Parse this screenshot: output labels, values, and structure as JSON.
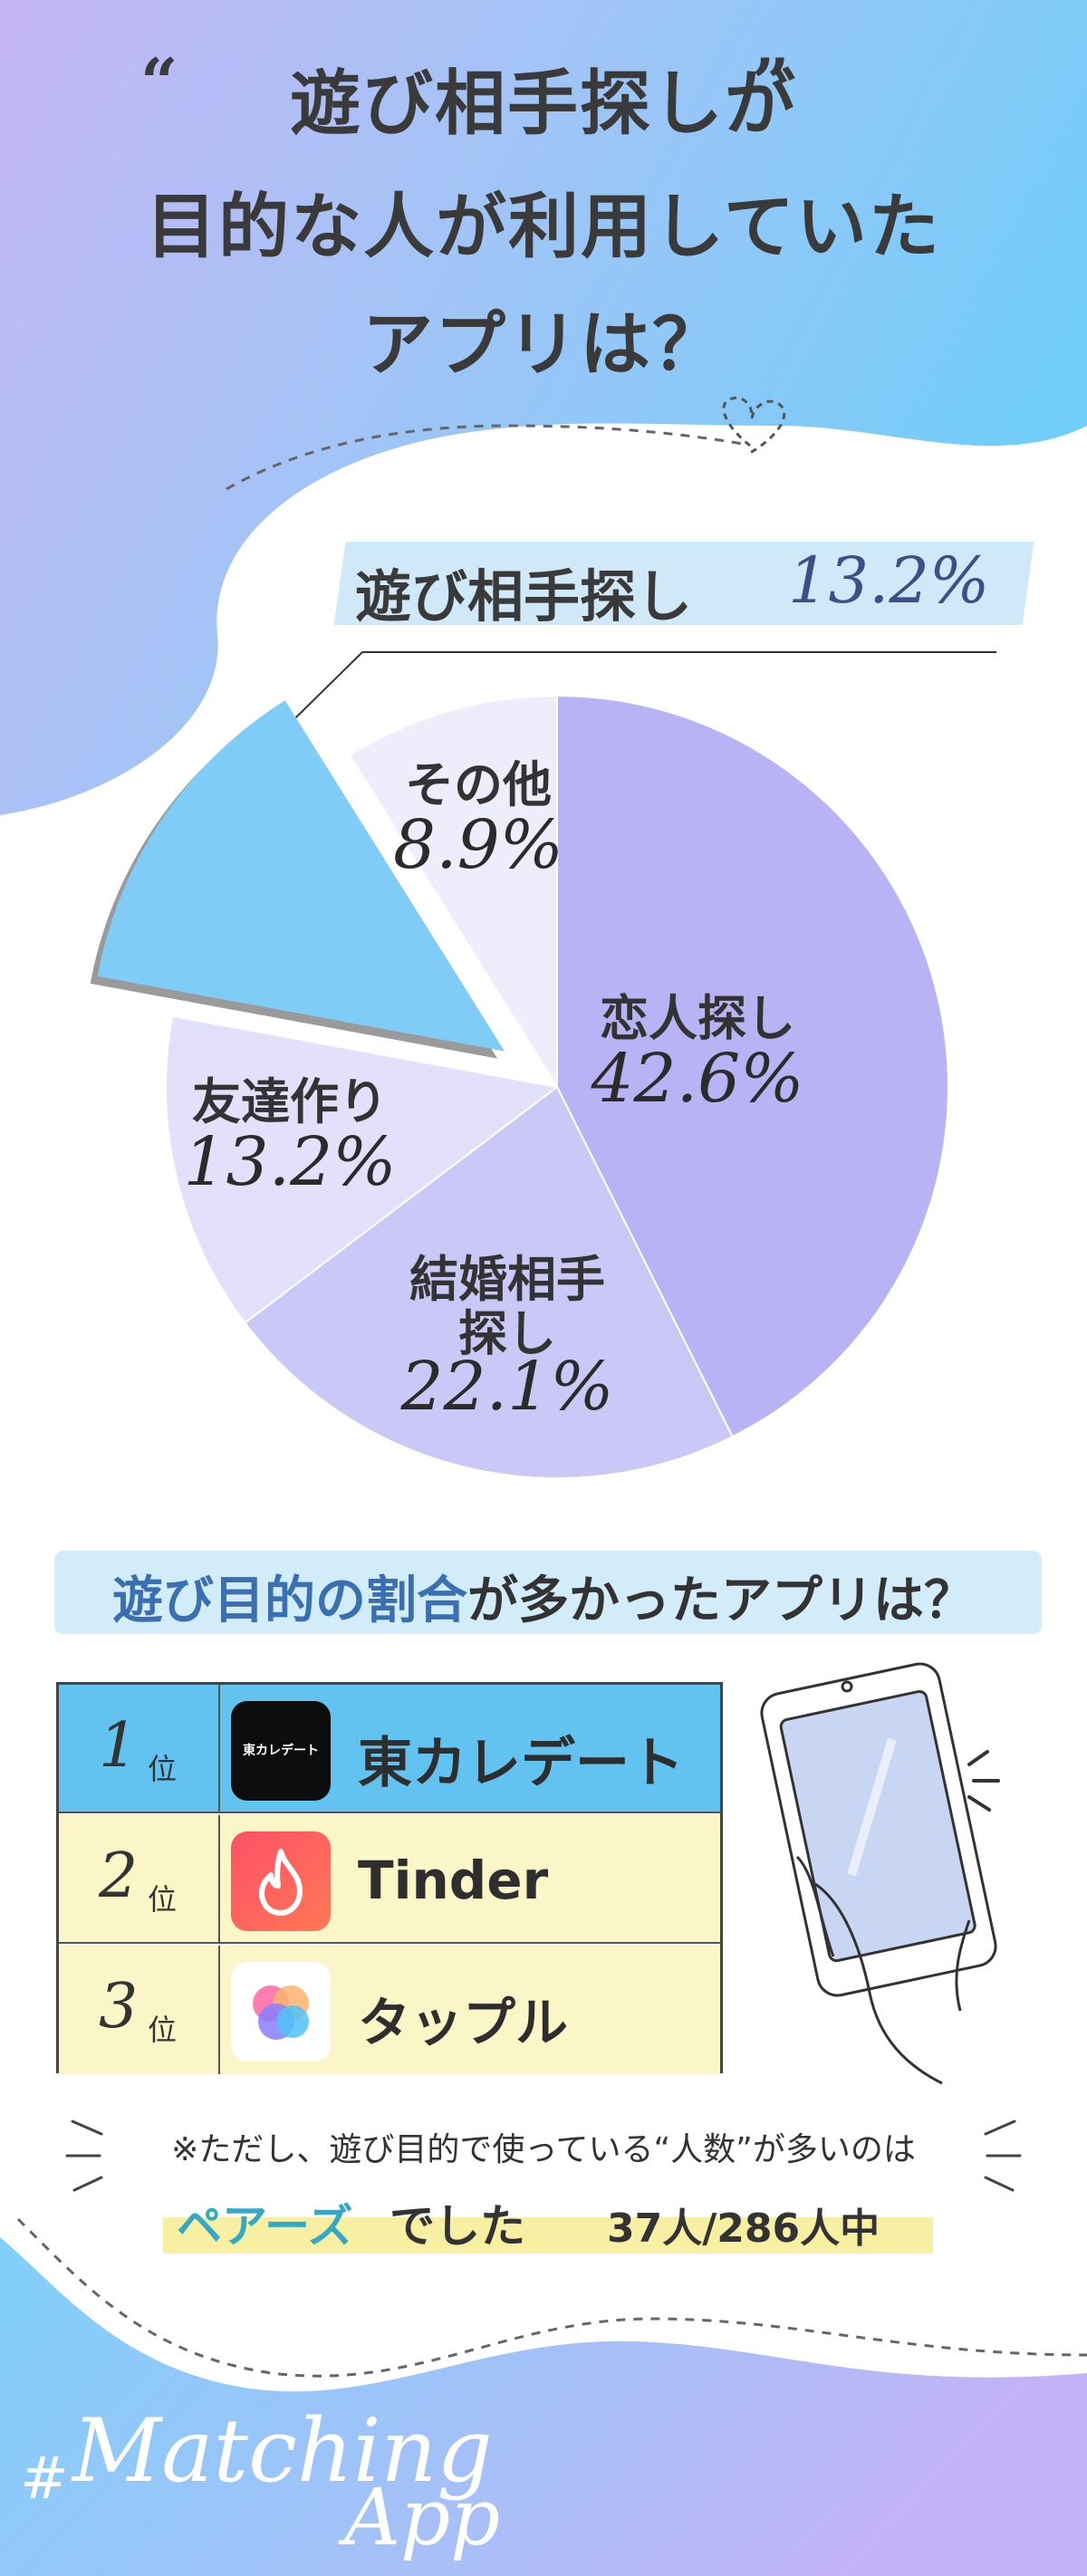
{
  "title": {
    "line1": "遊び相手探し",
    "line1_suffix": "が",
    "line2": "目的な人が利用していた",
    "line3": "アプリは？"
  },
  "highlight": {
    "label": "遊び相手探し",
    "value": "13.2%"
  },
  "chart_data": {
    "type": "pie",
    "slices": [
      {
        "label": "恋人探し",
        "value": 42.6,
        "value_text": "42.6%",
        "color": "#b8b3f5"
      },
      {
        "label": "結婚相手探し",
        "value": 22.1,
        "value_text": "22.1%",
        "color": "#cac8f7"
      },
      {
        "label": "友達作り",
        "value": 13.2,
        "value_text": "13.2%",
        "color": "#e2e0fa"
      },
      {
        "label": "遊び相手探し",
        "value": 13.2,
        "value_text": "13.2%",
        "color": "#7fcdf6",
        "exploded": true
      },
      {
        "label": "その他",
        "value": 8.9,
        "value_text": "8.9%",
        "color": "#eeedfc"
      }
    ],
    "label_lines": {
      "marriage_line1": "結婚相手",
      "marriage_line2": "探し"
    }
  },
  "section2": {
    "title_accent": "遊び目的の割合",
    "title_rest": "が多かったアプリは？"
  },
  "ranking": [
    {
      "rank": "1",
      "suffix": "位",
      "app": "東カレデート",
      "icon_text": "東カレデート",
      "row_color": "#62c3f0"
    },
    {
      "rank": "2",
      "suffix": "位",
      "app": "Tinder",
      "row_color": "#fbf6c8"
    },
    {
      "rank": "3",
      "suffix": "位",
      "app": "タップル",
      "row_color": "#fbf6c8"
    }
  ],
  "note": {
    "line1": "※ただし、遊び目的で使っている“人数”が多いのは",
    "app": "ペアーズ",
    "suffix": "でした",
    "count": "37人/286人中"
  },
  "watermark": {
    "hash": "#",
    "word1": "Matching",
    "word2": "App"
  },
  "colors": {
    "bg_top": "#7fd0fa",
    "bg_purple": "#c9b6f7",
    "accent_blue": "#3f4e86"
  }
}
